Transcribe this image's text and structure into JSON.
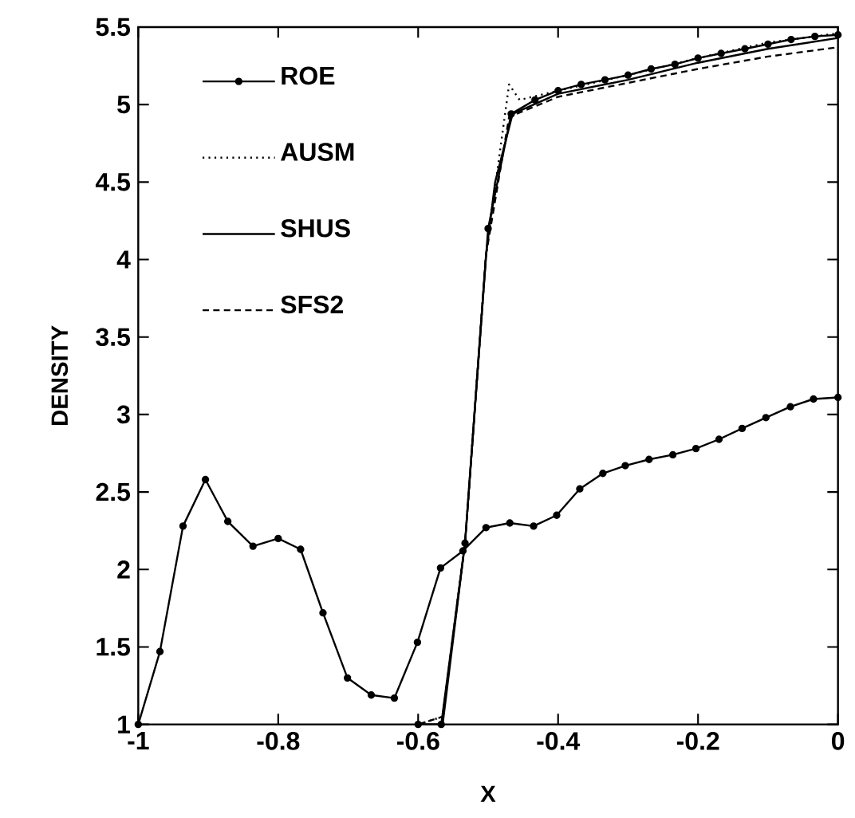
{
  "chart_data": {
    "type": "line",
    "xlabel": "X",
    "ylabel": "DENSITY",
    "xlim": [
      -1,
      0
    ],
    "ylim": [
      1,
      5.5
    ],
    "xticks": [
      -1,
      -0.8,
      -0.6,
      -0.4,
      -0.2,
      0
    ],
    "yticks": [
      1,
      1.5,
      2,
      2.5,
      3,
      3.5,
      4,
      4.5,
      5,
      5.5
    ],
    "grid": false,
    "legend": "top left",
    "series": [
      {
        "name": "ROE",
        "color": "#000000",
        "line_style": "solid",
        "marker": "circle",
        "x": [
          -0.6,
          -0.567,
          -0.533,
          -0.5,
          -0.467,
          -0.433,
          -0.4,
          -0.367,
          -0.333,
          -0.3,
          -0.267,
          -0.233,
          -0.2,
          -0.167,
          -0.133,
          -0.1,
          -0.067,
          -0.033,
          0
        ],
        "values": [
          1,
          1,
          2.17,
          4.2,
          4.94,
          5.03,
          5.09,
          5.13,
          5.16,
          5.19,
          5.23,
          5.26,
          5.3,
          5.33,
          5.36,
          5.39,
          5.42,
          5.44,
          5.45
        ]
      },
      {
        "name": "AUSM",
        "color": "#000000",
        "line_style": "dotted",
        "marker": "none",
        "x": [
          -0.6,
          -0.565,
          -0.533,
          -0.503,
          -0.48,
          -0.47,
          -0.455,
          -0.4,
          -0.3,
          -0.2,
          -0.1,
          0
        ],
        "values": [
          1,
          1.05,
          2.17,
          4.03,
          4.8,
          5.13,
          5.03,
          5.09,
          5.19,
          5.3,
          5.4,
          5.46
        ]
      },
      {
        "name": "SHUS",
        "color": "#000000",
        "line_style": "solid",
        "marker": "none",
        "x": [
          -0.6,
          -0.565,
          -0.533,
          -0.503,
          -0.49,
          -0.465,
          -0.4,
          -0.3,
          -0.2,
          -0.1,
          0
        ],
        "values": [
          1,
          1,
          2.17,
          4.03,
          4.5,
          4.94,
          5.07,
          5.16,
          5.27,
          5.36,
          5.43
        ]
      },
      {
        "name": "SFS2",
        "color": "#000000",
        "line_style": "dashed",
        "marker": "none",
        "x": [
          -0.6,
          -0.565,
          -0.533,
          -0.503,
          -0.47,
          -0.4,
          -0.3,
          -0.2,
          -0.1,
          0
        ],
        "values": [
          1,
          1.05,
          2.17,
          4.03,
          4.92,
          5.05,
          5.14,
          5.23,
          5.31,
          5.37
        ]
      },
      {
        "color": "#000000",
        "line_style": "solid",
        "marker": "circle",
        "x": [
          -1,
          -0.969,
          -0.936,
          -0.904,
          -0.872,
          -0.836,
          -0.8,
          -0.768,
          -0.736,
          -0.701,
          -0.667,
          -0.634,
          -0.601,
          -0.568,
          -0.536,
          -0.503,
          -0.469,
          -0.435,
          -0.402,
          -0.369,
          -0.336,
          -0.304,
          -0.27,
          -0.236,
          -0.203,
          -0.17,
          -0.137,
          -0.103,
          -0.068,
          -0.035,
          0
        ],
        "values": [
          1,
          1.47,
          2.28,
          2.58,
          2.31,
          2.15,
          2.2,
          2.13,
          1.72,
          1.3,
          1.19,
          1.17,
          1.53,
          2.01,
          2.12,
          2.27,
          2.3,
          2.28,
          2.35,
          2.52,
          2.62,
          2.67,
          2.71,
          2.74,
          2.78,
          2.84,
          2.91,
          2.98,
          3.05,
          3.1,
          3.11
        ]
      }
    ]
  }
}
